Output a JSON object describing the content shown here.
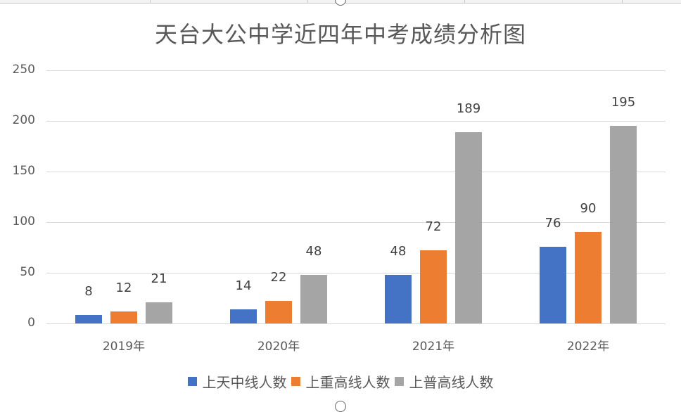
{
  "chart_data": {
    "type": "bar",
    "title": "天台大公中学近四年中考成绩分析图",
    "xlabel": "",
    "ylabel": "",
    "categories": [
      "2019年",
      "2020年",
      "2021年",
      "2022年"
    ],
    "series": [
      {
        "name": "上天中线人数",
        "color": "#4472C4",
        "values": [
          8,
          14,
          48,
          76
        ]
      },
      {
        "name": "上重高线人数",
        "color": "#ED7D31",
        "values": [
          12,
          22,
          72,
          90
        ]
      },
      {
        "name": "上普高线人数",
        "color": "#A5A5A5",
        "values": [
          21,
          48,
          189,
          195
        ]
      }
    ],
    "ylim": [
      0,
      250
    ],
    "yticks": [
      "0",
      "50",
      "100",
      "150",
      "200",
      "250"
    ],
    "grid": true,
    "legend_position": "bottom",
    "data_labels": true
  }
}
